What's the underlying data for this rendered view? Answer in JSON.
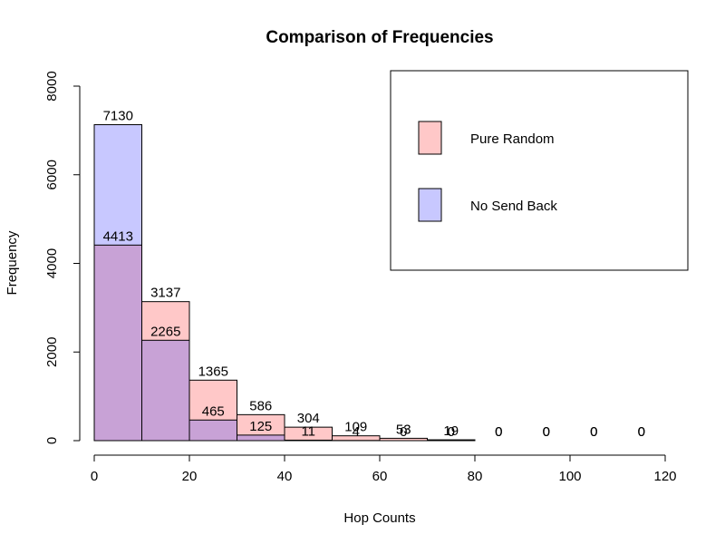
{
  "chart_data": {
    "type": "bar",
    "title": "Comparison of Frequencies",
    "xlabel": "Hop Counts",
    "ylabel": "Frequency",
    "xlim": [
      0,
      120
    ],
    "ylim": [
      0,
      8000
    ],
    "x_ticks": [
      "0",
      "20",
      "40",
      "60",
      "80",
      "100",
      "120"
    ],
    "y_ticks": [
      "0",
      "2000",
      "4000",
      "6000",
      "8000"
    ],
    "bins": [
      [
        0,
        10
      ],
      [
        10,
        20
      ],
      [
        20,
        30
      ],
      [
        30,
        40
      ],
      [
        40,
        50
      ],
      [
        50,
        60
      ],
      [
        60,
        70
      ],
      [
        70,
        80
      ],
      [
        80,
        90
      ],
      [
        90,
        100
      ],
      [
        100,
        110
      ],
      [
        110,
        120
      ]
    ],
    "series": [
      {
        "name": "Pure Random",
        "color": "#ffc8c8",
        "values": [
          4413,
          3137,
          1365,
          586,
          304,
          109,
          53,
          19,
          0,
          0,
          0,
          0
        ],
        "labels": [
          "4413",
          "3137",
          "1365",
          "586",
          "304",
          "109",
          "53",
          "19",
          "0",
          "0",
          "0",
          "0"
        ]
      },
      {
        "name": "No Send Back",
        "color": "#c8c8ff",
        "values": [
          7130,
          2265,
          465,
          125,
          11,
          4,
          0,
          0,
          0,
          0,
          0,
          0
        ],
        "labels": [
          "7130",
          "2265",
          "465",
          "125",
          "11",
          "4",
          "0",
          "0",
          "0",
          "0",
          "0",
          "0"
        ]
      }
    ],
    "overlap_color": "#c8a2d6",
    "legend": {
      "placement": "top-right",
      "items": [
        "Pure Random",
        "No Send Back"
      ]
    },
    "grid": false
  }
}
